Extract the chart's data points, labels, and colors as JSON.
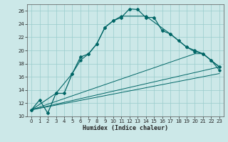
{
  "xlabel": "Humidex (Indice chaleur)",
  "bg_color": "#cce8e8",
  "grid_color": "#99cccc",
  "line_color": "#006666",
  "xlim": [
    -0.5,
    23.5
  ],
  "ylim": [
    10,
    27
  ],
  "xticks": [
    0,
    1,
    2,
    3,
    4,
    5,
    6,
    7,
    8,
    9,
    10,
    11,
    12,
    13,
    14,
    15,
    16,
    17,
    18,
    19,
    20,
    21,
    22,
    23
  ],
  "yticks": [
    10,
    12,
    14,
    16,
    18,
    20,
    22,
    24,
    26
  ],
  "main_x": [
    0,
    1,
    2,
    3,
    4,
    5,
    6,
    7,
    8,
    9,
    10,
    11,
    12,
    13,
    14,
    15,
    16,
    17,
    18,
    19,
    20,
    21,
    22,
    23
  ],
  "main_y": [
    11.0,
    12.5,
    10.5,
    13.5,
    13.5,
    16.5,
    19.0,
    19.5,
    21.0,
    23.5,
    24.5,
    25.0,
    26.3,
    26.2,
    25.0,
    25.0,
    23.0,
    22.5,
    21.5,
    20.5,
    20.0,
    19.5,
    18.5,
    17.5
  ],
  "line2_x": [
    0,
    3,
    5,
    6,
    7,
    8,
    9,
    10,
    11,
    14,
    17,
    19,
    20,
    21,
    22,
    23
  ],
  "line2_y": [
    11.0,
    13.5,
    16.5,
    18.5,
    19.5,
    21.0,
    23.5,
    24.5,
    25.2,
    25.2,
    22.5,
    20.5,
    19.8,
    19.5,
    18.5,
    17.0
  ],
  "line3_x": [
    0,
    23
  ],
  "line3_y": [
    11.0,
    16.5
  ],
  "line4_x": [
    0,
    23
  ],
  "line4_y": [
    11.0,
    17.5
  ],
  "line5_x": [
    0,
    20,
    21,
    22,
    23
  ],
  "line5_y": [
    11.0,
    19.5,
    19.5,
    18.5,
    17.5
  ],
  "xlabel_fontsize": 6,
  "tick_fontsize": 5
}
